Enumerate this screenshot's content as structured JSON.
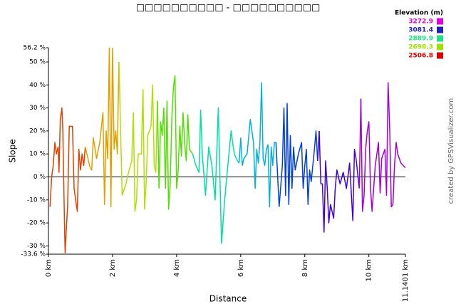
{
  "chart_data": {
    "type": "line",
    "title": "□□□□□□□□□□ - □□□□□□□□□□",
    "x_label": "Distance",
    "y_label": "Slope",
    "credit": "created by GPSVisualizer.com",
    "xlim": [
      0,
      11.1401
    ],
    "ylim": [
      -33.6,
      56.2
    ],
    "xticks": [
      {
        "value": 0,
        "label": "0 km"
      },
      {
        "value": 2,
        "label": "2 km"
      },
      {
        "value": 4,
        "label": "4 km"
      },
      {
        "value": 6,
        "label": "6 km"
      },
      {
        "value": 8,
        "label": "8 km"
      },
      {
        "value": 10,
        "label": "10 km"
      },
      {
        "value": 11.1401,
        "label": "11.1401 km"
      }
    ],
    "yticks": [
      {
        "value": -33.6,
        "label": "-33.6 %"
      },
      {
        "value": -30,
        "label": "-30 %"
      },
      {
        "value": -20,
        "label": "-20 %"
      },
      {
        "value": -10,
        "label": "-10 %"
      },
      {
        "value": 0,
        "label": "0 %"
      },
      {
        "value": 10,
        "label": "10 %"
      },
      {
        "value": 20,
        "label": "20 %"
      },
      {
        "value": 30,
        "label": "30 %"
      },
      {
        "value": 40,
        "label": "40 %"
      },
      {
        "value": 50,
        "label": "50 %"
      },
      {
        "value": 56.2,
        "label": "56.2 %"
      }
    ],
    "legend": {
      "title": "Elevation (m)",
      "items": [
        {
          "value": 3272.9,
          "color": "#e000e0"
        },
        {
          "value": 3081.4,
          "color": "#2020c0"
        },
        {
          "value": 2889.9,
          "color": "#20e080"
        },
        {
          "value": 2698.3,
          "color": "#a0e000"
        },
        {
          "value": 2506.8,
          "color": "#e00000"
        }
      ]
    },
    "series": [
      {
        "color": "#e04000",
        "x": [
          0.05,
          0.1,
          0.15,
          0.2,
          0.25,
          0.3,
          0.33,
          0.37,
          0.42,
          0.45,
          0.5,
          0.52,
          0.55,
          0.6,
          0.65,
          0.7,
          0.75,
          0.8,
          0.85,
          0.9,
          0.95,
          1.0,
          1.05,
          1.1,
          1.15
        ],
        "values": [
          -13,
          0,
          5,
          15,
          10,
          13,
          2,
          25,
          30,
          20,
          -20,
          -33,
          -25,
          -12,
          22,
          22,
          22,
          -5,
          -10,
          -15,
          12,
          3,
          10,
          5,
          13
        ]
      },
      {
        "color": "#e0a000",
        "x": [
          1.3,
          1.35,
          1.4,
          1.5,
          1.6,
          1.7,
          1.75,
          1.8,
          1.85,
          1.9,
          1.95,
          2.0,
          2.05,
          2.1,
          2.15,
          2.2
        ],
        "values": [
          4,
          3,
          17,
          8,
          15,
          28,
          -12,
          20,
          8,
          56,
          -13,
          56,
          12,
          20,
          10,
          50
        ]
      },
      {
        "color": "#b0e000",
        "x": [
          2.3,
          2.4,
          2.5,
          2.6,
          2.65,
          2.7,
          2.75,
          2.8,
          2.9,
          2.95,
          3.0,
          3.05,
          3.1,
          3.2,
          3.25,
          3.3,
          3.35,
          3.4
        ],
        "values": [
          -8,
          -4,
          2,
          7,
          28,
          -15,
          -10,
          10,
          10,
          38,
          -14,
          -2,
          18,
          22,
          40,
          5,
          2,
          33
        ]
      },
      {
        "color": "#50e000",
        "x": [
          3.45,
          3.5,
          3.55,
          3.6,
          3.65,
          3.7,
          3.75,
          3.8,
          3.85,
          3.9,
          3.95,
          4.0,
          4.05,
          4.1,
          4.15,
          4.2,
          4.25,
          4.3,
          4.35,
          4.4,
          4.5
        ],
        "values": [
          -5,
          24,
          18,
          30,
          -5,
          33,
          -14,
          -3,
          25,
          39,
          44,
          -5,
          3,
          22,
          9,
          28,
          15,
          7,
          27,
          12,
          10
        ]
      },
      {
        "color": "#00e0a0",
        "x": [
          4.6,
          4.7,
          4.75,
          4.8,
          4.9,
          5.0,
          5.1,
          5.2,
          5.3,
          5.4,
          5.5,
          5.6,
          5.7,
          5.8,
          5.9,
          5.95
        ],
        "values": [
          5,
          2,
          29,
          10,
          -8,
          13,
          5,
          -10,
          30,
          -29,
          -10,
          5,
          20,
          10,
          7,
          6
        ]
      },
      {
        "color": "#00b0e0",
        "x": [
          6.0,
          6.05,
          6.1,
          6.2,
          6.3,
          6.4,
          6.45,
          6.5,
          6.55,
          6.6,
          6.65,
          6.7,
          6.75,
          6.8,
          6.85,
          6.9,
          6.95,
          7.0,
          7.05,
          7.1
        ],
        "values": [
          17,
          5,
          8,
          10,
          25,
          15,
          -5,
          12,
          6,
          15,
          41,
          8,
          5,
          12,
          14,
          -13,
          13,
          5,
          15,
          15
        ]
      },
      {
        "color": "#0040e0",
        "x": [
          7.2,
          7.3,
          7.35,
          7.4,
          7.45,
          7.5,
          7.55,
          7.6,
          7.65,
          7.7,
          7.8,
          7.9,
          7.95,
          8.0,
          8.05,
          8.1,
          8.15,
          8.2,
          8.3,
          8.35,
          8.4
        ],
        "values": [
          -13,
          5,
          30,
          -8,
          32,
          -12,
          18,
          -5,
          13,
          3,
          10,
          15,
          -5,
          5,
          12,
          -12,
          3,
          -2,
          12,
          20,
          7
        ]
      },
      {
        "color": "#4000e0",
        "x": [
          8.45,
          8.5,
          8.55,
          8.6,
          8.65,
          8.7,
          8.75,
          8.8,
          8.9,
          8.95,
          9.0,
          9.1,
          9.2,
          9.3,
          9.4,
          9.5,
          9.55,
          9.6,
          9.7
        ],
        "values": [
          20,
          -3,
          -3,
          -24,
          7,
          -5,
          -20,
          -12,
          -18,
          -5,
          3,
          -3,
          2,
          -5,
          6,
          -19,
          12,
          8,
          -5
        ]
      },
      {
        "color": "#a000e0",
        "x": [
          9.75,
          9.8,
          9.85,
          9.9,
          9.95,
          10.0,
          10.05,
          10.1,
          10.2,
          10.3,
          10.35,
          10.4,
          10.5,
          10.55,
          10.6,
          10.65,
          10.7,
          10.75,
          10.8,
          10.85,
          10.9,
          11.0,
          11.14
        ],
        "values": [
          34,
          -15,
          -8,
          12,
          20,
          24,
          -5,
          -15,
          5,
          15,
          -7,
          8,
          12,
          -8,
          41,
          20,
          -13,
          -12,
          5,
          15,
          10,
          6,
          4
        ]
      }
    ]
  }
}
